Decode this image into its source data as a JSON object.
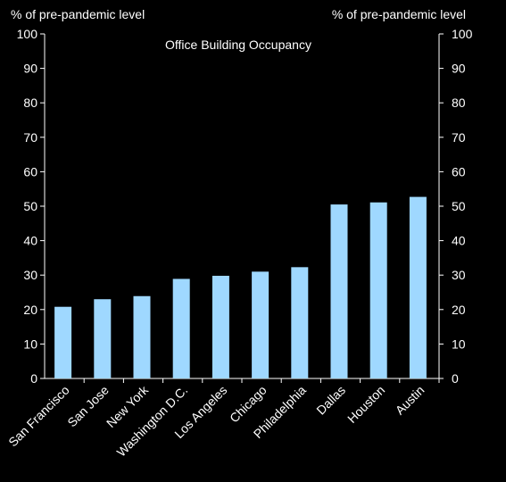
{
  "chart_data": {
    "type": "bar",
    "title": "Office Building Occupancy",
    "ylabel_left": "% of pre-pandemic  level",
    "ylabel_right": "% of pre-pandemic  level",
    "categories": [
      "San Francisco",
      "San Jose",
      "New York",
      "Washington D.C.",
      "Los Angeles",
      "Chicago",
      "Philadelphia",
      "Dallas",
      "Houston",
      "Austin"
    ],
    "values": [
      20.8,
      23.0,
      23.9,
      28.9,
      29.8,
      31.0,
      32.3,
      50.5,
      51.1,
      52.7
    ],
    "ylim": [
      0,
      100
    ],
    "yticks": [
      0,
      10,
      20,
      30,
      40,
      50,
      60,
      70,
      80,
      90,
      100
    ],
    "grid": false,
    "colors": {
      "background": "#000000",
      "bar": "#9fd8ff",
      "axis": "#ffffff",
      "text": "#ffffff"
    }
  }
}
